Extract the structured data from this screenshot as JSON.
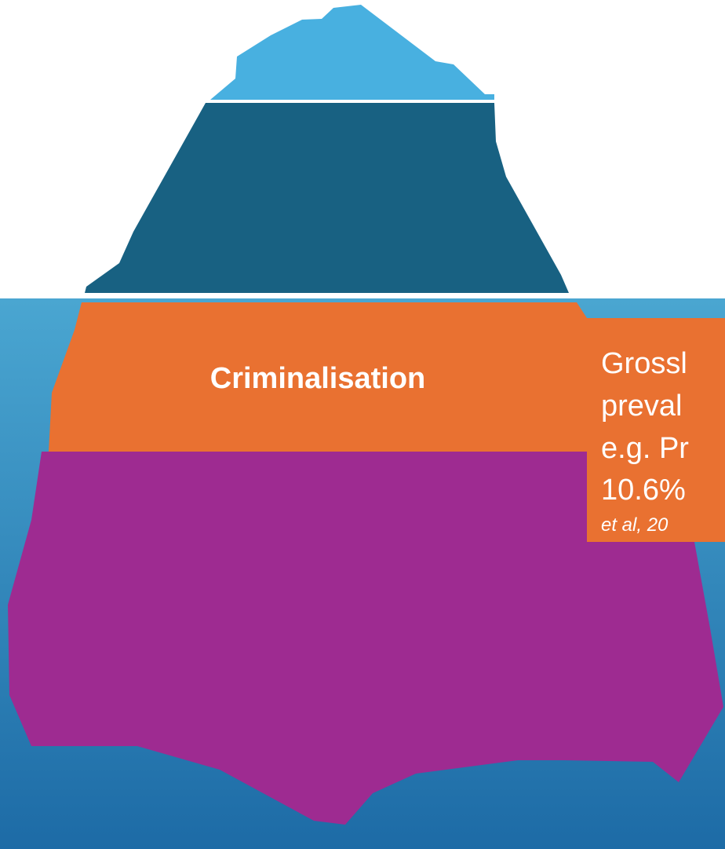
{
  "iceberg": {
    "layers": [
      {
        "label": "Criminalisation"
      }
    ]
  },
  "callout": {
    "lines": [
      "Grossl",
      "preval",
      "e.g. Pr",
      "10.6%"
    ],
    "citation": "et al, 20"
  }
}
